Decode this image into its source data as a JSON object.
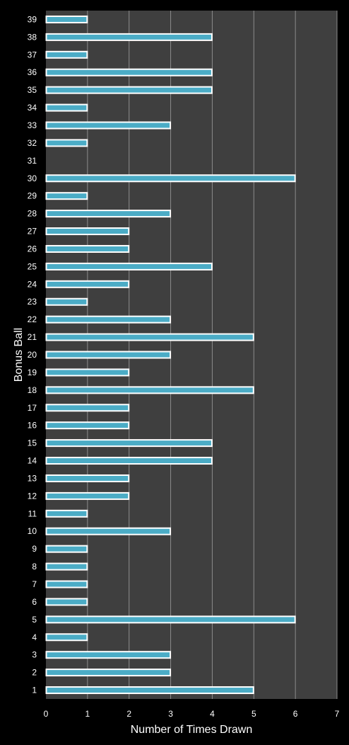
{
  "chart_data": {
    "type": "bar",
    "orientation": "horizontal",
    "xlabel": "Number of Times Drawn",
    "ylabel": "Bonus Ball",
    "xlim": [
      0,
      7
    ],
    "x_ticks": [
      "0",
      "1",
      "2",
      "3",
      "4",
      "5",
      "6",
      "7"
    ],
    "grid": "vertical",
    "legend": "none",
    "categories": [
      "1",
      "2",
      "3",
      "4",
      "5",
      "6",
      "7",
      "8",
      "9",
      "10",
      "11",
      "12",
      "13",
      "14",
      "15",
      "16",
      "17",
      "18",
      "19",
      "20",
      "21",
      "22",
      "23",
      "24",
      "25",
      "26",
      "27",
      "28",
      "29",
      "30",
      "31",
      "32",
      "33",
      "34",
      "35",
      "36",
      "37",
      "38",
      "39"
    ],
    "values": [
      5,
      3,
      3,
      1,
      6,
      1,
      1,
      1,
      1,
      3,
      1,
      2,
      2,
      4,
      4,
      2,
      2,
      5,
      2,
      3,
      5,
      3,
      1,
      2,
      4,
      2,
      2,
      3,
      1,
      6,
      0,
      1,
      3,
      1,
      4,
      4,
      1,
      4,
      1
    ],
    "colors": {
      "background": "#000000",
      "plot_area": "#3f3f3f",
      "gridline": "#8c8c8c",
      "bar_fill": "#4bacc6",
      "bar_border": "#ffffff",
      "text": "#ffffff"
    }
  }
}
